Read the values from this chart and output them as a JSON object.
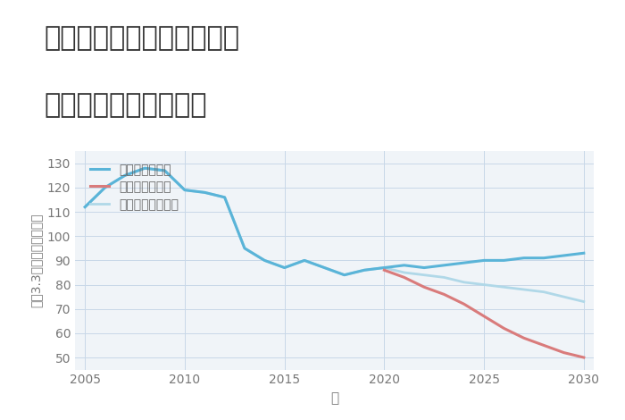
{
  "title_line1": "兵庫県豊岡市日高町伊府の",
  "title_line2": "中古戸建ての価格推移",
  "xlabel": "年",
  "ylabel": "坪（3.3㎡）単価（万円）",
  "background_color": "#f0f4f8",
  "plot_bg_color": "#f0f4f8",
  "title_bg_color": "#ffffff",
  "ylim": [
    45,
    135
  ],
  "yticks": [
    50,
    60,
    70,
    80,
    90,
    100,
    110,
    120,
    130
  ],
  "xlim": [
    2004.5,
    2030.5
  ],
  "xticks": [
    2005,
    2010,
    2015,
    2020,
    2025,
    2030
  ],
  "good_scenario": {
    "label": "グッドシナリオ",
    "color": "#5ab4d8",
    "linewidth": 2.2,
    "x": [
      2005,
      2006,
      2007,
      2008,
      2009,
      2010,
      2011,
      2012,
      2013,
      2014,
      2015,
      2016,
      2017,
      2018,
      2019,
      2020,
      2021,
      2022,
      2023,
      2024,
      2025,
      2026,
      2027,
      2028,
      2029,
      2030
    ],
    "y": [
      112,
      120,
      125,
      128,
      127,
      119,
      118,
      116,
      95,
      90,
      87,
      90,
      87,
      84,
      86,
      87,
      88,
      87,
      88,
      89,
      90,
      90,
      91,
      91,
      92,
      93
    ]
  },
  "bad_scenario": {
    "label": "バッドシナリオ",
    "color": "#d97b7b",
    "linewidth": 2.2,
    "x": [
      2020,
      2021,
      2022,
      2023,
      2024,
      2025,
      2026,
      2027,
      2028,
      2029,
      2030
    ],
    "y": [
      86,
      83,
      79,
      76,
      72,
      67,
      62,
      58,
      55,
      52,
      50
    ]
  },
  "normal_scenario": {
    "label": "ノーマルシナリオ",
    "color": "#b0d8e8",
    "linewidth": 2.0,
    "x": [
      2005,
      2006,
      2007,
      2008,
      2009,
      2010,
      2011,
      2012,
      2013,
      2014,
      2015,
      2016,
      2017,
      2018,
      2019,
      2020,
      2021,
      2022,
      2023,
      2024,
      2025,
      2026,
      2027,
      2028,
      2029,
      2030
    ],
    "y": [
      112,
      120,
      125,
      128,
      127,
      119,
      118,
      116,
      95,
      90,
      87,
      90,
      87,
      84,
      86,
      87,
      85,
      84,
      83,
      81,
      80,
      79,
      78,
      77,
      75,
      73
    ]
  },
  "legend_fontsize": 10,
  "title_fontsize": 22,
  "axis_fontsize": 10
}
